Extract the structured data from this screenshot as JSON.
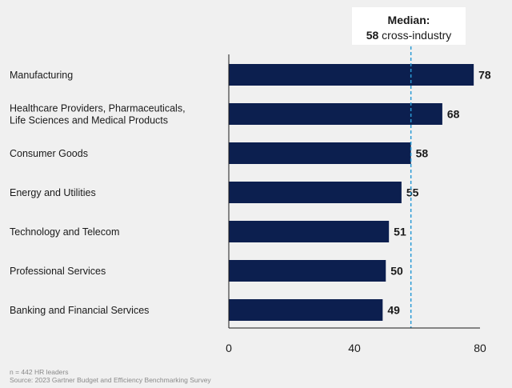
{
  "chart_data": {
    "type": "bar",
    "orientation": "horizontal",
    "categories": [
      [
        "Manufacturing"
      ],
      [
        "Healthcare Providers, Pharmaceuticals,",
        "Life Sciences and Medical Products"
      ],
      [
        "Consumer Goods"
      ],
      [
        "Energy and Utilities"
      ],
      [
        "Technology and Telecom"
      ],
      [
        "Professional Services"
      ],
      [
        "Banking and Financial Services"
      ]
    ],
    "values": [
      78,
      68,
      58,
      55,
      51,
      50,
      49
    ],
    "xlim": [
      0,
      80
    ],
    "xticks": [
      0,
      40,
      80
    ],
    "median": {
      "value": 58,
      "title": "Median:",
      "value_text": "58",
      "suffix": " cross-industry"
    },
    "footnote": {
      "n": "n = 442 HR leaders",
      "source": "Source: 2023 Gartner Budget and Efficiency Benchmarking Survey"
    },
    "colors": {
      "bar": "#0c1f4f",
      "median_line": "#2b9bd6",
      "axis": "#1a1a1a",
      "background": "#f0f0f0",
      "median_box": "#ffffff"
    }
  }
}
